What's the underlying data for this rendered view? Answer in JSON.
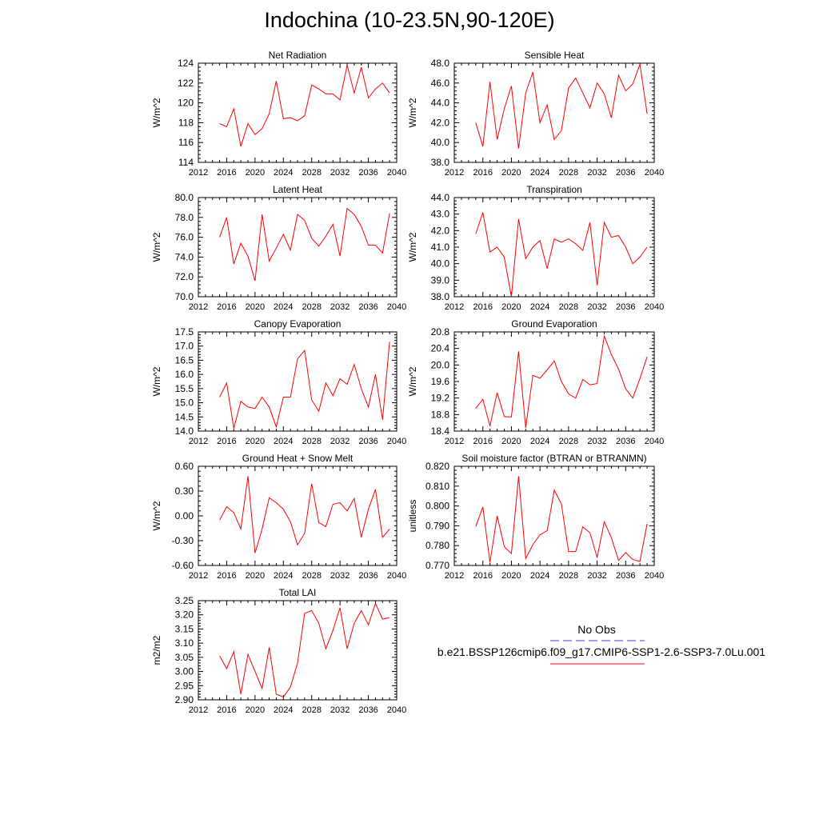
{
  "title": "Indochina (10-23.5N,90-120E)",
  "legend": {
    "obs_label": "No Obs",
    "case_label": "b.e21.BSSP126cmip6.f09_g17.CMIP6-SSP1-2.6-SSP3-7.0Lu.001",
    "obs_color": "#4040c0",
    "case_color": "#ff0000"
  },
  "line_color": "#ff0000",
  "chart_data": [
    {
      "type": "line",
      "title": "Net Radiation",
      "ylabel": "W/m^2",
      "xlim": [
        2012,
        2040
      ],
      "ylim": [
        114,
        124
      ],
      "xticks": [
        "2012",
        "2016",
        "2020",
        "2024",
        "2028",
        "2032",
        "2036",
        "2040"
      ],
      "yticks": [
        "114",
        "116",
        "118",
        "120",
        "122",
        "124"
      ],
      "x": [
        2015,
        2016,
        2017,
        2018,
        2019,
        2020,
        2021,
        2022,
        2023,
        2024,
        2025,
        2026,
        2027,
        2028,
        2029,
        2030,
        2031,
        2032,
        2033,
        2034,
        2035,
        2036,
        2037,
        2038,
        2039
      ],
      "values": [
        117.9,
        117.6,
        119.4,
        115.6,
        117.9,
        116.8,
        117.4,
        118.9,
        122.2,
        118.4,
        118.5,
        118.2,
        118.7,
        121.8,
        121.4,
        120.9,
        120.9,
        120.3,
        123.8,
        121.0,
        123.6,
        120.5,
        121.4,
        122.0,
        121.0
      ]
    },
    {
      "type": "line",
      "title": "Sensible Heat",
      "ylabel": "W/m^2",
      "xlim": [
        2012,
        2040
      ],
      "ylim": [
        38.0,
        48.0
      ],
      "xticks": [
        "2012",
        "2016",
        "2020",
        "2024",
        "2028",
        "2032",
        "2036",
        "2040"
      ],
      "yticks": [
        "38.0",
        "40.0",
        "42.0",
        "44.0",
        "46.0",
        "48.0"
      ],
      "x": [
        2015,
        2016,
        2017,
        2018,
        2019,
        2020,
        2021,
        2022,
        2023,
        2024,
        2025,
        2026,
        2027,
        2028,
        2029,
        2030,
        2031,
        2032,
        2033,
        2034,
        2035,
        2036,
        2037,
        2038,
        2039
      ],
      "values": [
        42.0,
        39.6,
        46.1,
        40.3,
        43.4,
        45.7,
        39.4,
        45.0,
        47.1,
        42.0,
        43.8,
        40.3,
        41.2,
        45.5,
        46.5,
        45.0,
        43.5,
        46.0,
        44.9,
        42.5,
        46.8,
        45.2,
        45.9,
        47.9,
        42.9
      ]
    },
    {
      "type": "line",
      "title": "Latent Heat",
      "ylabel": "W/m^2",
      "xlim": [
        2012,
        2040
      ],
      "ylim": [
        70.0,
        80.0
      ],
      "xticks": [
        "2012",
        "2016",
        "2020",
        "2024",
        "2028",
        "2032",
        "2036",
        "2040"
      ],
      "yticks": [
        "70.0",
        "72.0",
        "74.0",
        "76.0",
        "78.0",
        "80.0"
      ],
      "x": [
        2015,
        2016,
        2017,
        2018,
        2019,
        2020,
        2021,
        2022,
        2023,
        2024,
        2025,
        2026,
        2027,
        2028,
        2029,
        2030,
        2031,
        2032,
        2033,
        2034,
        2035,
        2036,
        2037,
        2038,
        2039
      ],
      "values": [
        76.0,
        78.0,
        73.3,
        75.4,
        74.1,
        71.6,
        78.3,
        73.6,
        74.9,
        76.3,
        74.7,
        78.3,
        77.7,
        75.9,
        75.1,
        76.1,
        77.3,
        74.1,
        78.9,
        78.3,
        77.1,
        75.2,
        75.2,
        74.4,
        78.4
      ]
    },
    {
      "type": "line",
      "title": "Transpiration",
      "ylabel": "W/m^2",
      "xlim": [
        2012,
        2040
      ],
      "ylim": [
        38.0,
        44.0
      ],
      "xticks": [
        "2012",
        "2016",
        "2020",
        "2024",
        "2028",
        "2032",
        "2036",
        "2040"
      ],
      "yticks": [
        "38.0",
        "39.0",
        "40.0",
        "41.0",
        "42.0",
        "43.0",
        "44.0"
      ],
      "x": [
        2015,
        2016,
        2017,
        2018,
        2019,
        2020,
        2021,
        2022,
        2023,
        2024,
        2025,
        2026,
        2027,
        2028,
        2029,
        2030,
        2031,
        2032,
        2033,
        2034,
        2035,
        2036,
        2037,
        2038,
        2039
      ],
      "values": [
        41.8,
        43.1,
        40.7,
        41.0,
        40.4,
        38.0,
        42.7,
        40.3,
        41.0,
        41.4,
        39.7,
        41.5,
        41.3,
        41.5,
        41.2,
        40.8,
        42.5,
        38.7,
        42.5,
        41.6,
        41.7,
        41.0,
        40.0,
        40.4,
        41.0
      ]
    },
    {
      "type": "line",
      "title": "Canopy Evaporation",
      "ylabel": "W/m^2",
      "xlim": [
        2012,
        2040
      ],
      "ylim": [
        14.0,
        17.5
      ],
      "xticks": [
        "2012",
        "2016",
        "2020",
        "2024",
        "2028",
        "2032",
        "2036",
        "2040"
      ],
      "yticks": [
        "14.0",
        "14.5",
        "15.0",
        "15.5",
        "16.0",
        "16.5",
        "17.0",
        "17.5"
      ],
      "x": [
        2015,
        2016,
        2017,
        2018,
        2019,
        2020,
        2021,
        2022,
        2023,
        2024,
        2025,
        2026,
        2027,
        2028,
        2029,
        2030,
        2031,
        2032,
        2033,
        2034,
        2035,
        2036,
        2037,
        2038,
        2039
      ],
      "values": [
        15.2,
        15.7,
        14.1,
        15.05,
        14.85,
        14.8,
        15.2,
        14.85,
        14.15,
        15.2,
        15.2,
        16.55,
        16.85,
        15.1,
        14.7,
        15.7,
        15.25,
        15.85,
        15.65,
        16.35,
        15.5,
        14.85,
        16.0,
        14.4,
        17.15
      ]
    },
    {
      "type": "line",
      "title": "Ground Evaporation",
      "ylabel": "W/m^2",
      "xlim": [
        2012,
        2040
      ],
      "ylim": [
        18.4,
        20.8
      ],
      "xticks": [
        "2012",
        "2016",
        "2020",
        "2024",
        "2028",
        "2032",
        "2036",
        "2040"
      ],
      "yticks": [
        "18.4",
        "18.8",
        "19.2",
        "19.6",
        "20.0",
        "20.4",
        "20.8"
      ],
      "x": [
        2015,
        2016,
        2017,
        2018,
        2019,
        2020,
        2021,
        2022,
        2023,
        2024,
        2025,
        2026,
        2027,
        2028,
        2029,
        2030,
        2031,
        2032,
        2033,
        2034,
        2035,
        2036,
        2037,
        2038,
        2039
      ],
      "values": [
        18.95,
        19.17,
        18.52,
        19.33,
        18.75,
        18.74,
        20.33,
        18.48,
        19.75,
        19.68,
        19.88,
        20.1,
        19.6,
        19.3,
        19.2,
        19.65,
        19.52,
        19.55,
        20.7,
        20.25,
        19.9,
        19.42,
        19.2,
        19.67,
        20.2
      ]
    },
    {
      "type": "line",
      "title": "Ground Heat + Snow Melt",
      "ylabel": "W/m^2",
      "xlim": [
        2012,
        2040
      ],
      "ylim": [
        -0.6,
        0.6
      ],
      "xticks": [
        "2012",
        "2016",
        "2020",
        "2024",
        "2028",
        "2032",
        "2036",
        "2040"
      ],
      "yticks": [
        "-0.60",
        "-0.30",
        "0.00",
        "0.30",
        "0.60"
      ],
      "x": [
        2015,
        2016,
        2017,
        2018,
        2019,
        2020,
        2021,
        2022,
        2023,
        2024,
        2025,
        2026,
        2027,
        2028,
        2029,
        2030,
        2031,
        2032,
        2033,
        2034,
        2035,
        2036,
        2037,
        2038,
        2039
      ],
      "values": [
        -0.05,
        0.11,
        0.04,
        -0.16,
        0.48,
        -0.45,
        -0.16,
        0.22,
        0.16,
        0.08,
        -0.07,
        -0.35,
        -0.21,
        0.39,
        -0.08,
        -0.13,
        0.14,
        0.16,
        0.06,
        0.21,
        -0.26,
        0.08,
        0.32,
        -0.26,
        -0.16
      ]
    },
    {
      "type": "line",
      "title": "Soil moisture factor (BTRAN or BTRANMN)",
      "ylabel": "unitless",
      "xlim": [
        2012,
        2040
      ],
      "ylim": [
        0.77,
        0.82
      ],
      "xticks": [
        "2012",
        "2016",
        "2020",
        "2024",
        "2028",
        "2032",
        "2036",
        "2040"
      ],
      "yticks": [
        "0.770",
        "0.780",
        "0.790",
        "0.800",
        "0.810",
        "0.820"
      ],
      "x": [
        2015,
        2016,
        2017,
        2018,
        2019,
        2020,
        2021,
        2022,
        2023,
        2024,
        2025,
        2026,
        2027,
        2028,
        2029,
        2030,
        2031,
        2032,
        2033,
        2034,
        2035,
        2036,
        2037,
        2038,
        2039
      ],
      "values": [
        0.7895,
        0.7995,
        0.7715,
        0.795,
        0.7795,
        0.776,
        0.815,
        0.7735,
        0.7805,
        0.7855,
        0.7875,
        0.808,
        0.801,
        0.777,
        0.777,
        0.7895,
        0.7865,
        0.774,
        0.792,
        0.784,
        0.7725,
        0.7765,
        0.773,
        0.772,
        0.791
      ]
    },
    {
      "type": "line",
      "title": "Total LAI",
      "ylabel": "m2/m2",
      "xlim": [
        2012,
        2040
      ],
      "ylim": [
        2.9,
        3.25
      ],
      "xticks": [
        "2012",
        "2016",
        "2020",
        "2024",
        "2028",
        "2032",
        "2036",
        "2040"
      ],
      "yticks": [
        "2.90",
        "2.95",
        "3.00",
        "3.05",
        "3.10",
        "3.15",
        "3.20",
        "3.25"
      ],
      "x": [
        2015,
        2016,
        2017,
        2018,
        2019,
        2020,
        2021,
        2022,
        2023,
        2024,
        2025,
        2026,
        2027,
        2028,
        2029,
        2030,
        2031,
        2032,
        2033,
        2034,
        2035,
        2036,
        2037,
        2038,
        2039
      ],
      "values": [
        3.055,
        3.01,
        3.07,
        2.92,
        3.06,
        3.0,
        2.94,
        3.085,
        2.92,
        2.91,
        2.945,
        3.03,
        3.205,
        3.215,
        3.17,
        3.08,
        3.145,
        3.225,
        3.08,
        3.17,
        3.215,
        3.165,
        3.24,
        3.185,
        3.19
      ]
    }
  ]
}
